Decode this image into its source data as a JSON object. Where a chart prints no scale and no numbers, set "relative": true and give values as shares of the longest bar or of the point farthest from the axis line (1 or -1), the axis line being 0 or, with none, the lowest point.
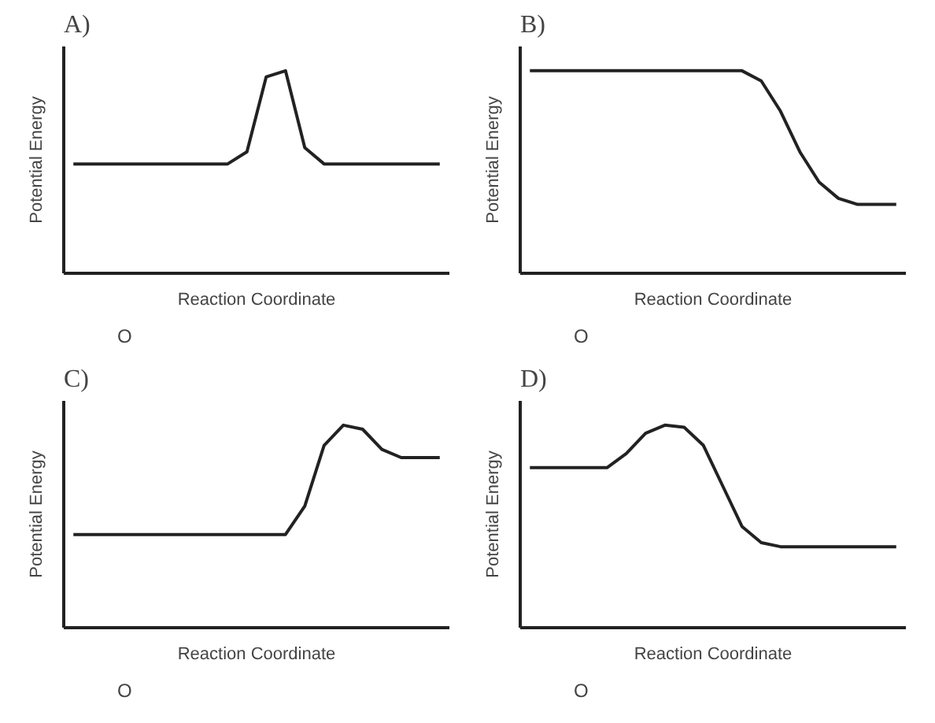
{
  "chart_data": [
    {
      "type": "line",
      "title": "A)",
      "xlabel": "Reaction Coordinate",
      "ylabel": "Potential Energy",
      "relative": true,
      "tick_labels": false,
      "grid": false,
      "annotations": [
        "O"
      ],
      "categories": [
        null,
        null,
        null,
        null,
        null,
        null,
        null,
        null,
        null,
        null,
        null,
        null,
        null,
        null,
        null,
        null,
        null,
        null,
        null,
        null
      ],
      "series": [
        {
          "color": "#222222",
          "values": [
            0.54,
            0.54,
            0.54,
            0.54,
            0.54,
            0.54,
            0.54,
            0.54,
            0.54,
            0.6,
            0.97,
            1.0,
            0.62,
            0.54,
            0.54,
            0.54,
            0.54,
            0.54,
            0.54,
            0.54
          ]
        }
      ]
    },
    {
      "type": "line",
      "title": "B)",
      "xlabel": "Reaction Coordinate",
      "ylabel": "Potential Energy",
      "relative": true,
      "tick_labels": false,
      "grid": false,
      "annotations": [
        "O"
      ],
      "categories": [
        null,
        null,
        null,
        null,
        null,
        null,
        null,
        null,
        null,
        null,
        null,
        null,
        null,
        null,
        null,
        null,
        null,
        null,
        null,
        null
      ],
      "series": [
        {
          "color": "#222222",
          "values": [
            1.0,
            1.0,
            1.0,
            1.0,
            1.0,
            1.0,
            1.0,
            1.0,
            1.0,
            1.0,
            1.0,
            1.0,
            0.95,
            0.8,
            0.6,
            0.45,
            0.37,
            0.34,
            0.34,
            0.34
          ]
        }
      ]
    },
    {
      "type": "line",
      "title": "C)",
      "xlabel": "Reaction Coordinate",
      "ylabel": "Potential Energy",
      "relative": true,
      "tick_labels": false,
      "grid": false,
      "annotations": [
        "O"
      ],
      "categories": [
        null,
        null,
        null,
        null,
        null,
        null,
        null,
        null,
        null,
        null,
        null,
        null,
        null,
        null,
        null,
        null,
        null,
        null,
        null,
        null
      ],
      "series": [
        {
          "color": "#222222",
          "values": [
            0.46,
            0.46,
            0.46,
            0.46,
            0.46,
            0.46,
            0.46,
            0.46,
            0.46,
            0.46,
            0.46,
            0.46,
            0.6,
            0.9,
            1.0,
            0.98,
            0.88,
            0.84,
            0.84,
            0.84
          ]
        }
      ]
    },
    {
      "type": "line",
      "title": "D)",
      "xlabel": "Reaction Coordinate",
      "ylabel": "Potential Energy",
      "relative": true,
      "tick_labels": false,
      "grid": false,
      "annotations": [
        "O"
      ],
      "categories": [
        null,
        null,
        null,
        null,
        null,
        null,
        null,
        null,
        null,
        null,
        null,
        null,
        null,
        null,
        null,
        null,
        null,
        null,
        null,
        null
      ],
      "series": [
        {
          "color": "#222222",
          "values": [
            0.79,
            0.79,
            0.79,
            0.79,
            0.79,
            0.86,
            0.96,
            1.0,
            0.99,
            0.9,
            0.7,
            0.5,
            0.42,
            0.4,
            0.4,
            0.4,
            0.4,
            0.4,
            0.4,
            0.4
          ]
        }
      ]
    }
  ]
}
